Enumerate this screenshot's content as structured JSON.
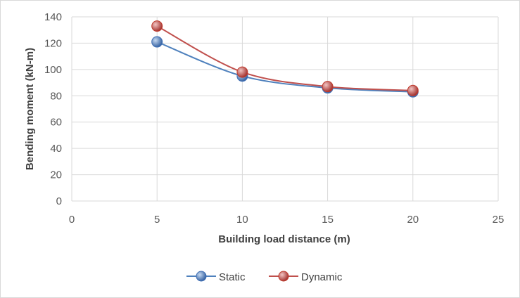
{
  "chart_data": {
    "type": "line",
    "xlabel": "Building load distance (m)",
    "ylabel": "Bending moment (kN-m)",
    "xlim": [
      0,
      25
    ],
    "ylim": [
      0,
      140
    ],
    "xticks": [
      0,
      5,
      10,
      15,
      20,
      25
    ],
    "yticks": [
      0,
      20,
      40,
      60,
      80,
      100,
      120,
      140
    ],
    "grid": true,
    "legend_position": "bottom",
    "x": [
      5,
      10,
      15,
      20
    ],
    "series": [
      {
        "name": "Static",
        "values": [
          121,
          95,
          86,
          83
        ],
        "color": "#4f81bd",
        "marker_color": "#3f6fb5"
      },
      {
        "name": "Dynamic",
        "values": [
          133,
          98,
          87,
          84
        ],
        "color": "#c0504d",
        "marker_color": "#c0392b"
      }
    ],
    "smooth": true
  }
}
